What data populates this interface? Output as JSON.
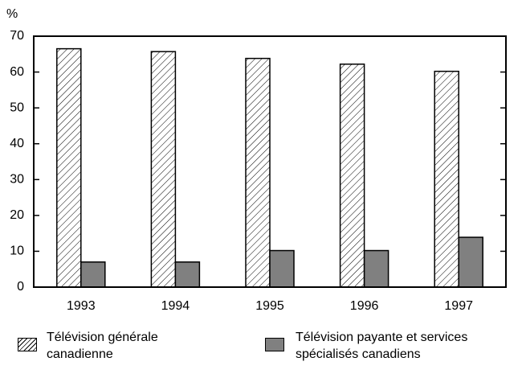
{
  "chart_data": {
    "type": "bar",
    "y_label": "%",
    "categories": [
      "1993",
      "1994",
      "1995",
      "1996",
      "1997"
    ],
    "series": [
      {
        "name": "Télévision générale canadienne",
        "color": "hatch",
        "values": [
          66.5,
          65.7,
          63.8,
          62.2,
          60.2
        ]
      },
      {
        "name": "Télévision payante et services spécialisés canadiens",
        "color": "#808080",
        "values": [
          7,
          7,
          10.2,
          10.2,
          13.9
        ]
      }
    ],
    "ylim": [
      0,
      70
    ],
    "yticks": [
      0,
      10,
      20,
      30,
      40,
      50,
      60,
      70
    ],
    "grid": false
  }
}
